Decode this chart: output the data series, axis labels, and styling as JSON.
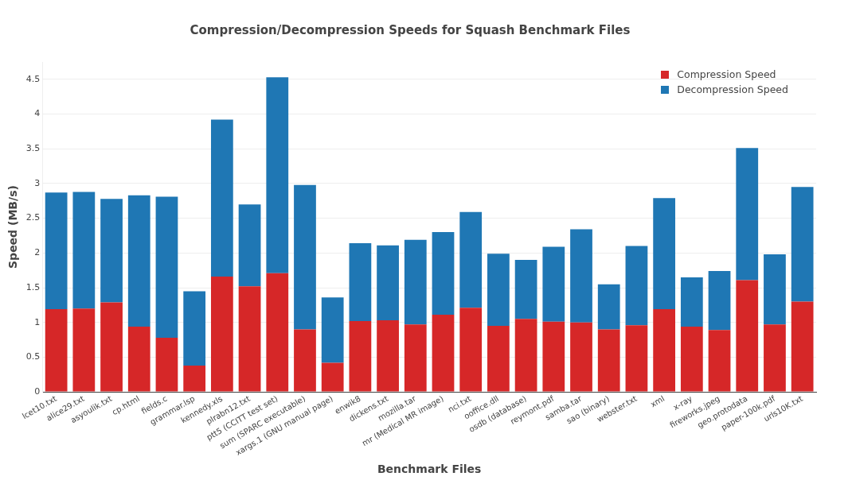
{
  "chart_data": {
    "type": "bar",
    "title": "Compression/Decompression Speeds for Squash Benchmark Files",
    "xlabel": "Benchmark Files",
    "ylabel": "Speed (MB/s)",
    "categories": [
      "lcet10.txt",
      "alice29.txt",
      "asyoulik.txt",
      "cp.html",
      "fields.c",
      "grammar.lsp",
      "kennedy.xls",
      "plrabn12.txt",
      "ptt5 (CCITT test set)",
      "sum (SPARC executable)",
      "xargs.1 (GNU manual page)",
      "enwik8",
      "dickens.txt",
      "mozilla.tar",
      "mr (Medical MR image)",
      "nci.txt",
      "ooffice.dll",
      "osdb (database)",
      "reymont.pdf",
      "samba.tar",
      "sao (binary)",
      "webster.txt",
      "xml",
      "x-ray",
      "fireworks.jpeg",
      "geo.protodata",
      "paper-100k.pdf",
      "urls10K.txt"
    ],
    "series": [
      {
        "name": "Compression Speed",
        "color": "#d62728",
        "values": [
          1.19,
          1.2,
          1.29,
          0.94,
          0.78,
          0.38,
          1.66,
          1.52,
          1.71,
          0.9,
          0.42,
          1.02,
          1.03,
          0.97,
          1.11,
          1.21,
          0.95,
          1.05,
          1.01,
          1.0,
          0.9,
          0.96,
          1.19,
          0.94,
          0.89,
          1.61,
          0.97,
          1.3
        ]
      },
      {
        "name": "Decompression Speed",
        "color": "#1f77b4",
        "values": [
          1.68,
          1.68,
          1.49,
          1.89,
          2.03,
          1.07,
          2.26,
          1.18,
          2.82,
          2.08,
          0.94,
          1.12,
          1.08,
          1.22,
          1.19,
          1.38,
          1.04,
          0.85,
          1.08,
          1.34,
          0.65,
          1.14,
          1.6,
          0.71,
          0.85,
          1.9,
          1.01,
          1.65
        ]
      }
    ],
    "stacked": true,
    "ylim": [
      0,
      4.75
    ],
    "yticks": [
      0,
      0.5,
      1,
      1.5,
      2,
      2.5,
      3,
      3.5,
      4,
      4.5
    ],
    "grid": "y",
    "legend": "top right"
  }
}
